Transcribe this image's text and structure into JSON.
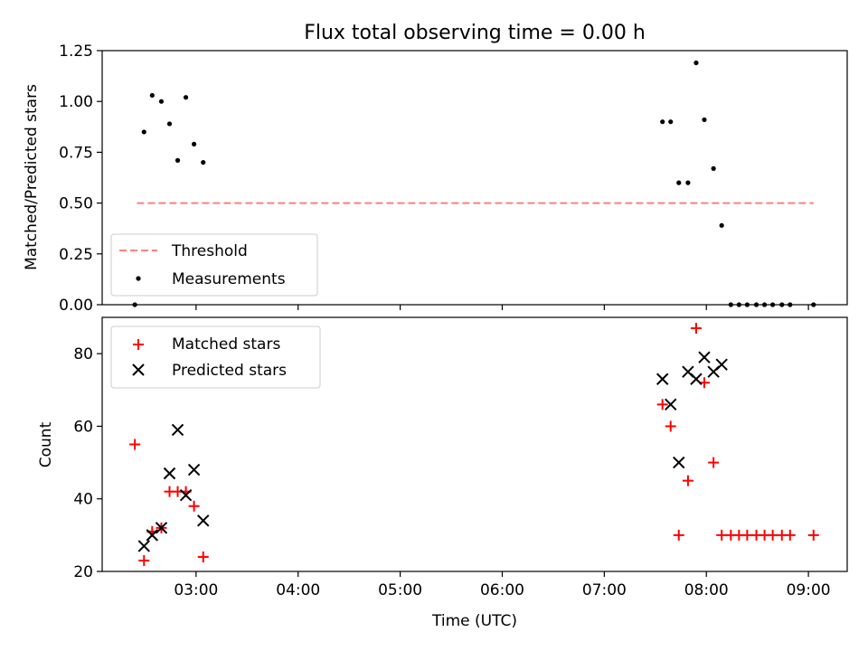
{
  "title": "Flux total observing time = 0.00 h",
  "chart_data": [
    {
      "type": "scatter",
      "panel": "top",
      "ylabel": "Matched/Predicted stars",
      "ylim": [
        0,
        1.25
      ],
      "yticks": [
        0,
        0.25,
        0.5,
        0.75,
        1.0,
        1.25
      ],
      "ytick_labels": [
        "0.00",
        "0.25",
        "0.50",
        "0.75",
        "1.00",
        "1.25"
      ],
      "xlim_hours": [
        2.08,
        9.38
      ],
      "legend_position": "lower-left",
      "legend": [
        "Threshold",
        "Measurements"
      ],
      "series": [
        {
          "name": "Threshold",
          "kind": "dashed-line",
          "color": "#ff7f7f",
          "points": [
            [
              2.42,
              0.5
            ],
            [
              9.05,
              0.5
            ]
          ]
        },
        {
          "name": "Measurements",
          "kind": "dot",
          "color": "#000000",
          "points": [
            [
              2.4,
              0.0
            ],
            [
              2.49,
              0.85
            ],
            [
              2.57,
              1.03
            ],
            [
              2.66,
              1.0
            ],
            [
              2.74,
              0.89
            ],
            [
              2.82,
              0.71
            ],
            [
              2.9,
              1.02
            ],
            [
              2.98,
              0.79
            ],
            [
              3.07,
              0.7
            ],
            [
              7.57,
              0.9
            ],
            [
              7.65,
              0.9
            ],
            [
              7.73,
              0.6
            ],
            [
              7.82,
              0.6
            ],
            [
              7.9,
              1.19
            ],
            [
              7.98,
              0.91
            ],
            [
              8.07,
              0.67
            ],
            [
              8.15,
              0.39
            ],
            [
              8.24,
              0.0
            ],
            [
              8.32,
              0.0
            ],
            [
              8.4,
              0.0
            ],
            [
              8.49,
              0.0
            ],
            [
              8.57,
              0.0
            ],
            [
              8.65,
              0.0
            ],
            [
              8.74,
              0.0
            ],
            [
              8.82,
              0.0
            ],
            [
              9.05,
              0.0
            ]
          ]
        }
      ]
    },
    {
      "type": "scatter",
      "panel": "bottom",
      "ylabel": "Count",
      "xlabel": "Time (UTC)",
      "ylim": [
        20,
        90
      ],
      "yticks": [
        20,
        40,
        60,
        80
      ],
      "ytick_labels": [
        "20",
        "40",
        "60",
        "80"
      ],
      "xlim_hours": [
        2.08,
        9.38
      ],
      "xticks_hours": [
        3,
        4,
        5,
        6,
        7,
        8,
        9
      ],
      "xtick_labels": [
        "03:00",
        "04:00",
        "05:00",
        "06:00",
        "07:00",
        "08:00",
        "09:00"
      ],
      "legend_position": "upper-left",
      "legend": [
        "Matched stars",
        "Predicted stars"
      ],
      "series": [
        {
          "name": "Matched stars",
          "kind": "plus",
          "color": "#ff0000",
          "points": [
            [
              2.4,
              55
            ],
            [
              2.49,
              23
            ],
            [
              2.57,
              31
            ],
            [
              2.66,
              32
            ],
            [
              2.74,
              42
            ],
            [
              2.82,
              42
            ],
            [
              2.9,
              42
            ],
            [
              2.98,
              38
            ],
            [
              3.07,
              24
            ],
            [
              7.57,
              66
            ],
            [
              7.65,
              60
            ],
            [
              7.73,
              30
            ],
            [
              7.82,
              45
            ],
            [
              7.9,
              87
            ],
            [
              7.98,
              72
            ],
            [
              8.07,
              50
            ],
            [
              8.15,
              30
            ],
            [
              8.24,
              30
            ],
            [
              8.32,
              30
            ],
            [
              8.4,
              30
            ],
            [
              8.49,
              30
            ],
            [
              8.57,
              30
            ],
            [
              8.65,
              30
            ],
            [
              8.74,
              30
            ],
            [
              8.82,
              30
            ],
            [
              9.05,
              30
            ]
          ]
        },
        {
          "name": "Predicted stars",
          "kind": "cross",
          "color": "#000000",
          "points": [
            [
              2.49,
              27
            ],
            [
              2.57,
              30
            ],
            [
              2.66,
              32
            ],
            [
              2.74,
              47
            ],
            [
              2.82,
              59
            ],
            [
              2.9,
              41
            ],
            [
              2.98,
              48
            ],
            [
              3.07,
              34
            ],
            [
              7.57,
              73
            ],
            [
              7.65,
              66
            ],
            [
              7.73,
              50
            ],
            [
              7.82,
              75
            ],
            [
              7.9,
              73
            ],
            [
              7.98,
              79
            ],
            [
              8.07,
              75
            ],
            [
              8.15,
              77
            ]
          ]
        }
      ]
    }
  ]
}
